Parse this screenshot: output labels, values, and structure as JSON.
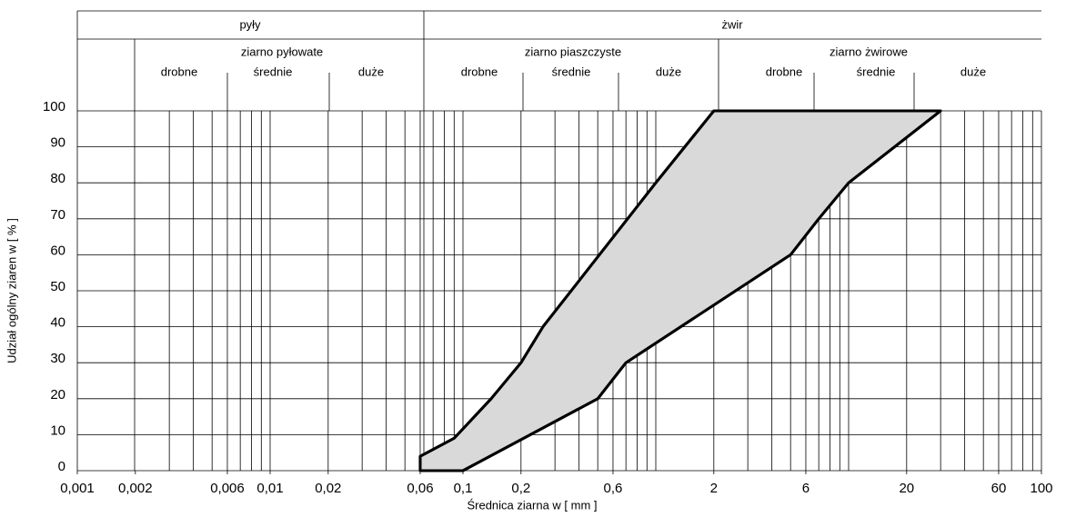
{
  "header": {
    "top": [
      "pyły",
      "żwir"
    ],
    "groups": [
      {
        "title": "ziarno pyłowate",
        "subs": [
          "drobne",
          "średnie",
          "duże"
        ]
      },
      {
        "title": "ziarno piaszczyste",
        "subs": [
          "drobne",
          "średnie",
          "duże"
        ]
      },
      {
        "title": "ziarno żwirowe",
        "subs": [
          "drobne",
          "średnie",
          "duże"
        ]
      }
    ]
  },
  "chart_data": {
    "type": "area",
    "x_label": "Średnica ziarna w [ mm ]",
    "y_label": "Udział ogólny ziaren w [ % ]",
    "x_log": true,
    "xlim": [
      0.001,
      100
    ],
    "ylim": [
      0,
      100
    ],
    "xticks": [
      {
        "value": 0.001,
        "label": "0,001"
      },
      {
        "value": 0.002,
        "label": "0,002"
      },
      {
        "value": 0.006,
        "label": "0,006"
      },
      {
        "value": 0.01,
        "label": "0,01"
      },
      {
        "value": 0.02,
        "label": "0,02"
      },
      {
        "value": 0.06,
        "label": "0,06"
      },
      {
        "value": 0.1,
        "label": "0,1"
      },
      {
        "value": 0.2,
        "label": "0,2"
      },
      {
        "value": 0.6,
        "label": "0,6"
      },
      2,
      6,
      20,
      60,
      100
    ],
    "yticks": [
      0,
      10,
      20,
      30,
      40,
      50,
      60,
      70,
      80,
      90,
      100
    ],
    "x_grid": [
      0.003,
      0.004,
      0.005,
      0.006,
      0.007,
      0.008,
      0.009,
      0.01,
      0.02,
      0.03,
      0.04,
      0.05,
      0.06,
      0.07,
      0.08,
      0.09,
      0.1,
      0.2,
      0.3,
      0.4,
      0.5,
      0.6,
      0.7,
      0.8,
      0.9,
      1,
      2,
      3,
      4,
      5,
      6,
      7,
      8,
      9,
      10,
      20,
      30,
      40,
      50,
      60,
      70,
      80,
      90
    ],
    "fill_color": "#d9d9d9",
    "series": [
      {
        "color": "#000000",
        "x": [
          0.06,
          0.06,
          0.09,
          0.14,
          0.2,
          0.26,
          1,
          2
        ],
        "values": [
          0,
          4,
          9,
          20,
          30,
          40,
          80,
          100
        ]
      },
      {
        "color": "#000000",
        "x": [
          0.06,
          0.1,
          0.5,
          0.7,
          5,
          7,
          10,
          30
        ],
        "values": [
          0,
          0,
          20,
          30,
          60,
          70,
          80,
          100
        ]
      }
    ]
  }
}
